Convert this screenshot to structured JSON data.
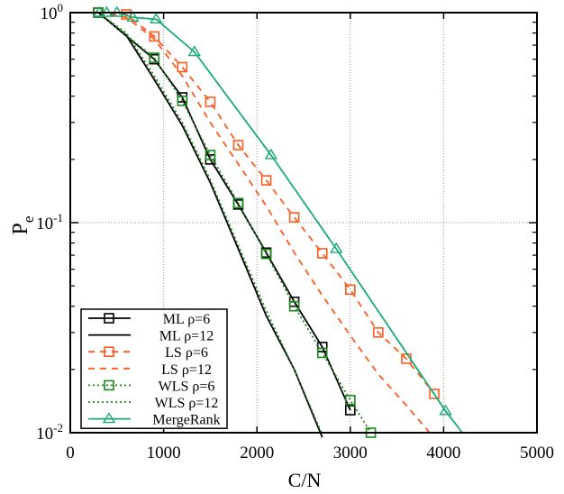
{
  "chart_data": {
    "type": "line",
    "title": "",
    "xlabel": "C/N",
    "ylabel": "P",
    "ylabel_sub": "e",
    "xlim": [
      0,
      5000
    ],
    "ylim": [
      0.01,
      1
    ],
    "yscale": "log",
    "xticks": [
      0,
      1000,
      2000,
      3000,
      4000,
      5000
    ],
    "yticks": [
      {
        "value": 1,
        "base": "10",
        "exp": "0"
      },
      {
        "value": 0.1,
        "base": "10",
        "exp": "-1"
      },
      {
        "value": 0.01,
        "base": "10",
        "exp": "-2"
      }
    ],
    "grid": true,
    "legend_position": "bottom-left",
    "series": [
      {
        "name": "ML ρ=6",
        "color": "#000000",
        "dash": "solid",
        "marker": "square",
        "x": [
          300,
          900,
          1200,
          1500,
          1800,
          2100,
          2400,
          2700,
          3000
        ],
        "y": [
          1.0,
          0.6,
          0.395,
          0.2,
          0.122,
          0.072,
          0.042,
          0.0256,
          0.0128
        ]
      },
      {
        "name": "ML ρ=12",
        "color": "#000000",
        "dash": "solid",
        "marker": "none",
        "x": [
          300,
          600,
          900,
          1200,
          1500,
          1800,
          2100,
          2400,
          2700
        ],
        "y": [
          1.0,
          0.78,
          0.48,
          0.29,
          0.155,
          0.075,
          0.036,
          0.02,
          0.0095
        ]
      },
      {
        "name": "LS ρ=6",
        "color": "#ff5a1e",
        "dash": "dashed",
        "marker": "square",
        "x": [
          300,
          600,
          900,
          1200,
          1500,
          1800,
          2100,
          2400,
          2700,
          3000,
          3300,
          3600,
          3900
        ],
        "y": [
          1.0,
          0.98,
          0.77,
          0.55,
          0.376,
          0.234,
          0.159,
          0.106,
          0.0715,
          0.048,
          0.03,
          0.0225,
          0.0153
        ]
      },
      {
        "name": "LS ρ=12",
        "color": "#ff5a1e",
        "dash": "dashed",
        "marker": "none",
        "x": [
          300,
          600,
          900,
          1200,
          1500,
          1800,
          2100,
          2400,
          2700,
          3000,
          3300,
          3600,
          3850
        ],
        "y": [
          1.0,
          0.95,
          0.75,
          0.5,
          0.3,
          0.19,
          0.12,
          0.072,
          0.045,
          0.029,
          0.019,
          0.0135,
          0.01
        ]
      },
      {
        "name": "WLS ρ=6",
        "color": "#1a8a1a",
        "dash": "dotted",
        "marker": "square",
        "x": [
          300,
          900,
          1200,
          1500,
          1800,
          2100,
          2400,
          2700,
          3000,
          3220
        ],
        "y": [
          1.0,
          0.61,
          0.38,
          0.21,
          0.124,
          0.071,
          0.04,
          0.024,
          0.0143,
          0.01
        ]
      },
      {
        "name": "WLS ρ=12",
        "color": "#1a8a1a",
        "dash": "dotted",
        "marker": "none",
        "x": [
          300,
          600,
          900,
          1200,
          1500,
          1800,
          2100,
          2400,
          2700
        ],
        "y": [
          1.0,
          0.8,
          0.5,
          0.3,
          0.16,
          0.078,
          0.038,
          0.02,
          0.0098
        ]
      },
      {
        "name": "MergeRank",
        "color": "#1aaa78",
        "dash": "solid",
        "marker": "triangle",
        "x": [
          310,
          390,
          500,
          670,
          920,
          1330,
          2150,
          2850,
          4020,
          4200
        ],
        "y": [
          1.0,
          1.0,
          1.0,
          0.95,
          0.93,
          0.65,
          0.21,
          0.075,
          0.0127,
          0.01
        ],
        "marker_count": 9
      }
    ]
  }
}
